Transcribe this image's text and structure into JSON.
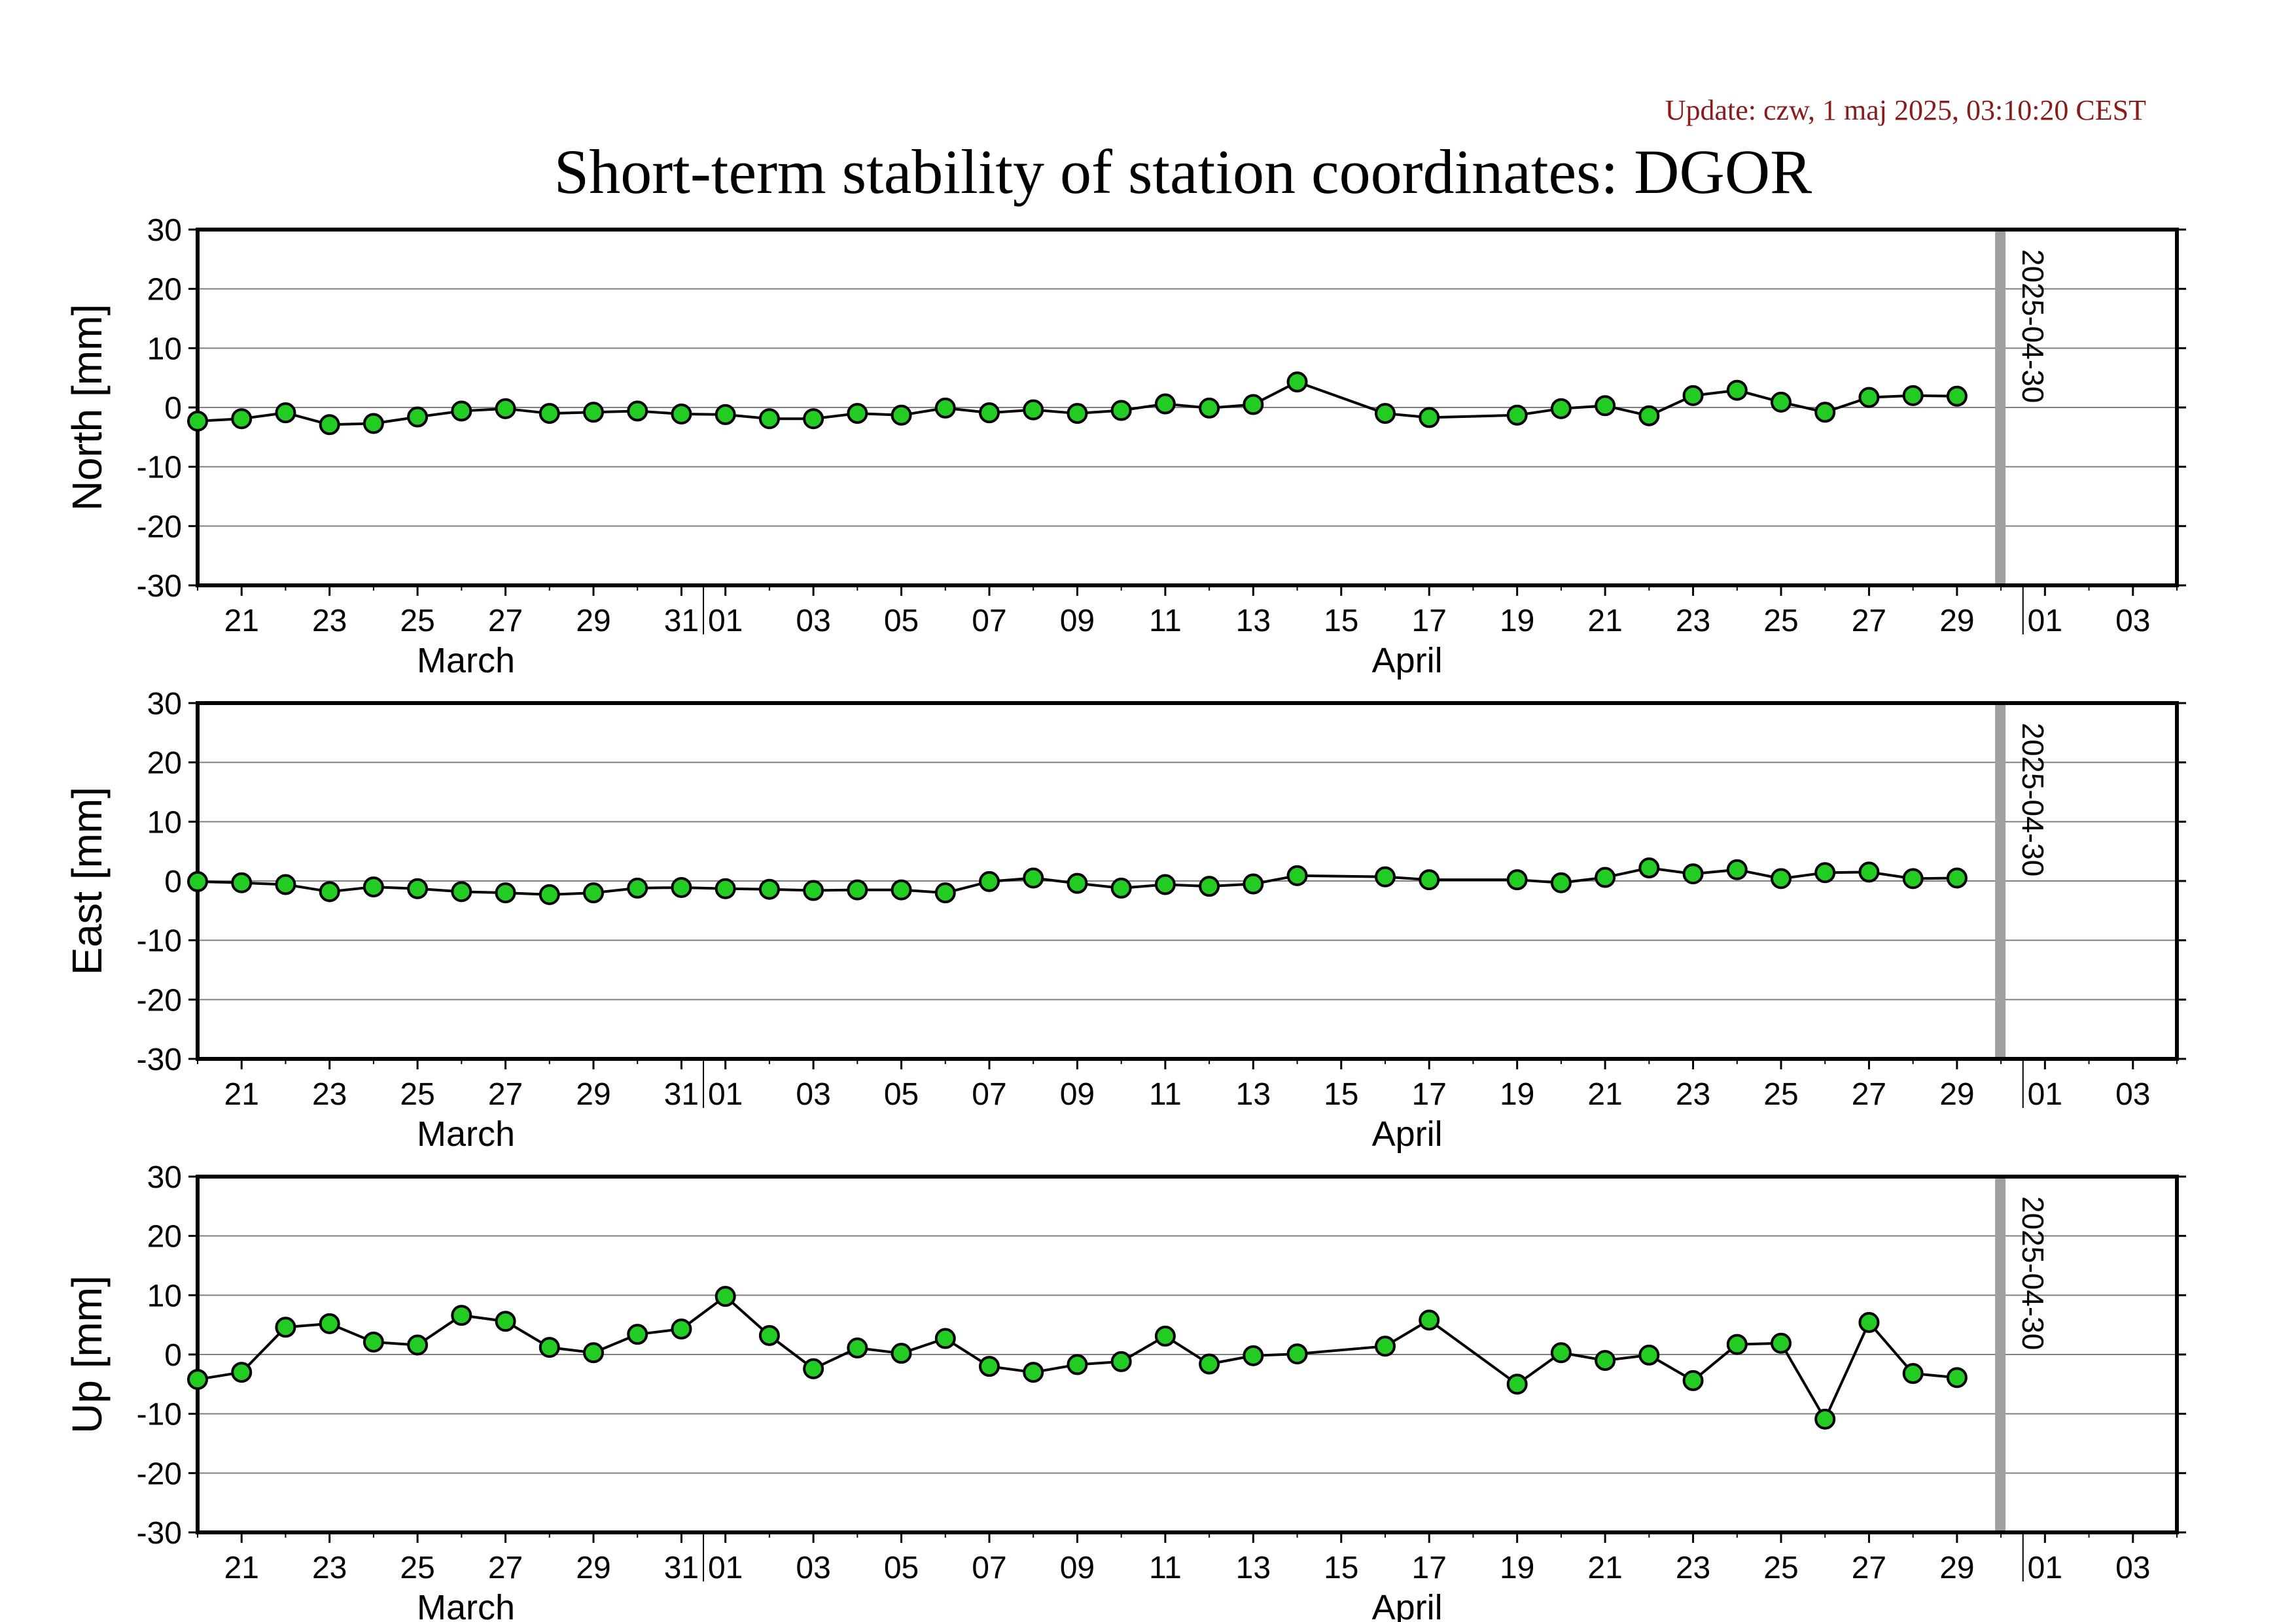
{
  "header": {
    "update": "Update: czw, 1 maj 2025, 03:10:20 CEST",
    "title": "Short-term stability of station coordinates: DGOR"
  },
  "colors": {
    "marker_fill": "#22cc22",
    "marker_stroke": "#000000",
    "line": "#000000",
    "grid": "#808080",
    "vline": "#a0a0a0",
    "update_text": "#8b1a1a"
  },
  "chart_data": [
    {
      "type": "line",
      "ylabel": "North [mm]",
      "ylim": [
        -30,
        30
      ],
      "yticks": [
        30,
        20,
        10,
        0,
        -10,
        -20,
        -30
      ],
      "xlim": [
        "2025-03-20",
        "2025-05-04"
      ],
      "grid": true,
      "day_ticks": [
        "21",
        "23",
        "25",
        "27",
        "29",
        "31",
        "01",
        "03",
        "05",
        "07",
        "09",
        "11",
        "13",
        "15",
        "17",
        "19",
        "21",
        "23",
        "25",
        "27",
        "29",
        "01",
        "03"
      ],
      "months": [
        "March",
        "April"
      ],
      "marker_line": "2025-04-30",
      "marker_line_label": "2025-04-30",
      "series": [
        {
          "x": [
            "2025-03-20",
            "2025-03-21",
            "2025-03-22",
            "2025-03-23",
            "2025-03-24",
            "2025-03-25",
            "2025-03-26",
            "2025-03-27",
            "2025-03-28",
            "2025-03-29",
            "2025-03-30",
            "2025-03-31",
            "2025-04-01",
            "2025-04-02",
            "2025-04-03",
            "2025-04-04",
            "2025-04-05",
            "2025-04-06",
            "2025-04-07",
            "2025-04-08",
            "2025-04-09",
            "2025-04-10",
            "2025-04-11",
            "2025-04-12",
            "2025-04-13",
            "2025-04-14",
            "2025-04-16",
            "2025-04-17",
            "2025-04-19",
            "2025-04-20",
            "2025-04-21",
            "2025-04-22",
            "2025-04-23",
            "2025-04-24",
            "2025-04-25",
            "2025-04-26",
            "2025-04-27",
            "2025-04-28",
            "2025-04-29"
          ],
          "y": [
            -2.3,
            -1.9,
            -0.9,
            -2.9,
            -2.7,
            -1.6,
            -0.6,
            -0.2,
            -1.0,
            -0.8,
            -0.6,
            -1.1,
            -1.2,
            -1.9,
            -1.9,
            -1.0,
            -1.3,
            -0.1,
            -0.9,
            -0.4,
            -1.0,
            -0.5,
            0.6,
            -0.1,
            0.5,
            4.3,
            -1.0,
            -1.7,
            -1.3,
            -0.2,
            0.3,
            -1.4,
            2.0,
            2.9,
            0.9,
            -0.8,
            1.7,
            2.0,
            1.9
          ]
        }
      ]
    },
    {
      "type": "line",
      "ylabel": "East [mm]",
      "ylim": [
        -30,
        30
      ],
      "yticks": [
        30,
        20,
        10,
        0,
        -10,
        -20,
        -30
      ],
      "xlim": [
        "2025-03-20",
        "2025-05-04"
      ],
      "grid": true,
      "day_ticks": [
        "21",
        "23",
        "25",
        "27",
        "29",
        "31",
        "01",
        "03",
        "05",
        "07",
        "09",
        "11",
        "13",
        "15",
        "17",
        "19",
        "21",
        "23",
        "25",
        "27",
        "29",
        "01",
        "03"
      ],
      "months": [
        "March",
        "April"
      ],
      "marker_line": "2025-04-30",
      "marker_line_label": "2025-04-30",
      "series": [
        {
          "x": [
            "2025-03-20",
            "2025-03-21",
            "2025-03-22",
            "2025-03-23",
            "2025-03-24",
            "2025-03-25",
            "2025-03-26",
            "2025-03-27",
            "2025-03-28",
            "2025-03-29",
            "2025-03-30",
            "2025-03-31",
            "2025-04-01",
            "2025-04-02",
            "2025-04-03",
            "2025-04-04",
            "2025-04-05",
            "2025-04-06",
            "2025-04-07",
            "2025-04-08",
            "2025-04-09",
            "2025-04-10",
            "2025-04-11",
            "2025-04-12",
            "2025-04-13",
            "2025-04-14",
            "2025-04-16",
            "2025-04-17",
            "2025-04-19",
            "2025-04-20",
            "2025-04-21",
            "2025-04-22",
            "2025-04-23",
            "2025-04-24",
            "2025-04-25",
            "2025-04-26",
            "2025-04-27",
            "2025-04-28",
            "2025-04-29"
          ],
          "y": [
            -0.1,
            -0.3,
            -0.6,
            -1.8,
            -1.0,
            -1.3,
            -1.8,
            -2.0,
            -2.3,
            -2.0,
            -1.2,
            -1.1,
            -1.3,
            -1.4,
            -1.6,
            -1.5,
            -1.5,
            -2.0,
            -0.1,
            0.5,
            -0.4,
            -1.2,
            -0.6,
            -0.9,
            -0.5,
            0.9,
            0.7,
            0.2,
            0.2,
            -0.3,
            0.6,
            2.2,
            1.2,
            1.9,
            0.4,
            1.4,
            1.5,
            0.4,
            0.5
          ]
        }
      ]
    },
    {
      "type": "line",
      "ylabel": "Up [mm]",
      "ylim": [
        -30,
        30
      ],
      "yticks": [
        30,
        20,
        10,
        0,
        -10,
        -20,
        -30
      ],
      "xlim": [
        "2025-03-20",
        "2025-05-04"
      ],
      "grid": true,
      "day_ticks": [
        "21",
        "23",
        "25",
        "27",
        "29",
        "31",
        "01",
        "03",
        "05",
        "07",
        "09",
        "11",
        "13",
        "15",
        "17",
        "19",
        "21",
        "23",
        "25",
        "27",
        "29",
        "01",
        "03"
      ],
      "months": [
        "March",
        "April"
      ],
      "marker_line": "2025-04-30",
      "marker_line_label": "2025-04-30",
      "series": [
        {
          "x": [
            "2025-03-20",
            "2025-03-21",
            "2025-03-22",
            "2025-03-23",
            "2025-03-24",
            "2025-03-25",
            "2025-03-26",
            "2025-03-27",
            "2025-03-28",
            "2025-03-29",
            "2025-03-30",
            "2025-03-31",
            "2025-04-01",
            "2025-04-02",
            "2025-04-03",
            "2025-04-04",
            "2025-04-05",
            "2025-04-06",
            "2025-04-07",
            "2025-04-08",
            "2025-04-09",
            "2025-04-10",
            "2025-04-11",
            "2025-04-12",
            "2025-04-13",
            "2025-04-14",
            "2025-04-16",
            "2025-04-17",
            "2025-04-19",
            "2025-04-20",
            "2025-04-21",
            "2025-04-22",
            "2025-04-23",
            "2025-04-24",
            "2025-04-25",
            "2025-04-26",
            "2025-04-27",
            "2025-04-28",
            "2025-04-29"
          ],
          "y": [
            -4.2,
            -3.0,
            4.6,
            5.2,
            2.1,
            1.6,
            6.6,
            5.6,
            1.2,
            0.3,
            3.4,
            4.3,
            9.8,
            3.2,
            -2.4,
            1.1,
            0.2,
            2.7,
            -2.0,
            -3.0,
            -1.7,
            -1.2,
            3.1,
            -1.6,
            -0.2,
            0.1,
            1.4,
            5.8,
            -5.0,
            0.3,
            -1.0,
            -0.1,
            -4.4,
            1.7,
            1.9,
            -10.9,
            5.4,
            -3.2,
            -3.9
          ]
        }
      ]
    }
  ]
}
